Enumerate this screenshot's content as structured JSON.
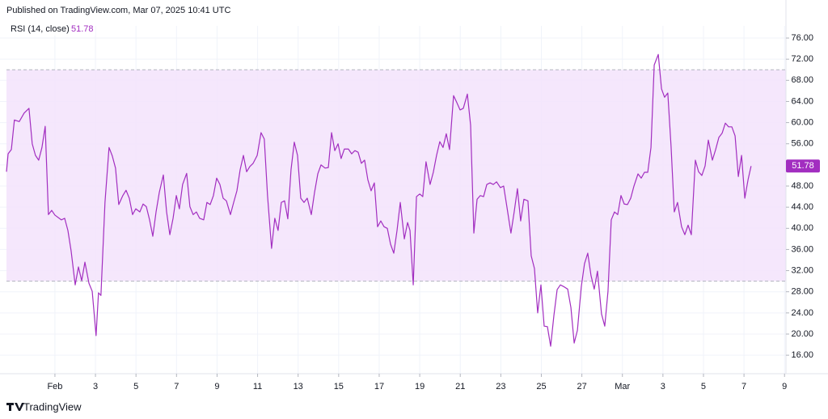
{
  "header": "Published on TradingView.com, Mar 07, 2025 10:41 UTC",
  "brand": "TradingView",
  "chart_data": {
    "type": "line",
    "x": [
      -2.39,
      -2.31,
      -2.15,
      -2.0,
      -1.76,
      -1.52,
      -1.28,
      -1.12,
      -0.96,
      -0.8,
      -0.64,
      -0.48,
      -0.32,
      -0.16,
      0,
      0.32,
      0.48,
      0.64,
      0.8,
      1.0,
      1.16,
      1.32,
      1.48,
      1.68,
      1.84,
      2.03,
      2.15,
      2.27,
      2.47,
      2.67,
      2.83,
      2.99,
      3.15,
      3.35,
      3.51,
      3.67,
      3.83,
      3.99,
      4.19,
      4.35,
      4.51,
      4.67,
      4.83,
      4.99,
      5.15,
      5.35,
      5.51,
      5.67,
      5.83,
      5.99,
      6.14,
      6.3,
      6.5,
      6.66,
      6.82,
      6.98,
      7.14,
      7.34,
      7.5,
      7.66,
      7.82,
      7.98,
      8.14,
      8.3,
      8.46,
      8.66,
      8.82,
      8.98,
      9.14,
      9.3,
      9.46,
      9.62,
      9.78,
      9.98,
      10.17,
      10.33,
      10.49,
      10.69,
      10.85,
      11.01,
      11.17,
      11.33,
      11.49,
      11.65,
      11.81,
      11.97,
      12.13,
      12.29,
      12.45,
      12.65,
      12.81,
      12.97,
      13.13,
      13.33,
      13.49,
      13.65,
      13.81,
      13.97,
      14.12,
      14.28,
      14.48,
      14.64,
      14.8,
      14.96,
      15.12,
      15.28,
      15.44,
      15.6,
      15.76,
      15.92,
      16.08,
      16.24,
      16.4,
      16.56,
      16.72,
      16.88,
      17.04,
      17.24,
      17.4,
      17.52,
      17.68,
      17.84,
      18.0,
      18.15,
      18.31,
      18.51,
      18.67,
      18.83,
      18.99,
      19.15,
      19.31,
      19.47,
      19.67,
      19.83,
      19.99,
      20.15,
      20.35,
      20.51,
      20.67,
      20.83,
      20.99,
      21.15,
      21.31,
      21.47,
      21.63,
      21.79,
      21.98,
      22.14,
      22.3,
      22.5,
      22.66,
      22.82,
      22.98,
      23.14,
      23.34,
      23.5,
      23.66,
      23.82,
      23.98,
      24.14,
      24.3,
      24.46,
      24.62,
      24.78,
      24.94,
      25.14,
      25.3,
      25.46,
      25.62,
      25.78,
      25.97,
      26.13,
      26.29,
      26.45,
      26.61,
      26.77,
      26.97,
      27.13,
      27.29,
      27.45,
      27.61,
      27.77,
      27.93,
      28.09,
      28.25,
      28.41,
      28.57,
      28.77,
      28.93,
      29.09,
      29.25,
      29.41,
      29.57,
      29.77,
      29.93,
      30.08,
      30.24,
      30.4,
      30.56,
      30.72,
      30.92,
      31.08,
      31.24,
      31.4,
      31.6,
      31.76,
      31.92,
      32.08,
      32.24,
      32.44,
      32.6,
      32.76,
      32.92,
      33.08,
      33.24,
      33.4,
      33.56,
      33.72,
      33.88,
      34.04,
      34.2,
      34.35
    ],
    "series": [
      {
        "name": "RSI (14, close)",
        "color": "#a22ec0",
        "values": [
          50.7,
          54.1,
          54.9,
          60.5,
          60.2,
          61.8,
          62.7,
          56.0,
          53.8,
          52.9,
          55.3,
          59.3,
          42.6,
          43.4,
          42.5,
          41.6,
          41.9,
          39.6,
          35.7,
          29.3,
          32.7,
          30.1,
          33.6,
          29.6,
          28.1,
          19.7,
          27.8,
          27.3,
          44.9,
          55.3,
          53.7,
          51.4,
          44.5,
          46.2,
          47.2,
          45.7,
          42.6,
          43.7,
          43.1,
          44.6,
          44.1,
          41.6,
          38.5,
          43.1,
          46.8,
          50.1,
          43.1,
          38.8,
          41.9,
          46.2,
          43.7,
          48.3,
          50.4,
          44.1,
          42.6,
          43.1,
          41.9,
          41.6,
          44.9,
          44.5,
          46.2,
          49.5,
          48.3,
          45.7,
          45.2,
          42.6,
          44.9,
          47.1,
          51.1,
          53.8,
          50.7,
          51.7,
          52.3,
          53.8,
          58.1,
          56.9,
          46.2,
          36.2,
          41.9,
          39.6,
          44.9,
          45.2,
          41.8,
          51.1,
          56.3,
          53.8,
          45.7,
          44.9,
          45.7,
          42.6,
          46.8,
          50.3,
          52.0,
          51.4,
          51.5,
          58.1,
          54.7,
          56.0,
          53.2,
          55.0,
          55.0,
          54.1,
          54.7,
          54.4,
          52.3,
          52.9,
          49.2,
          47.1,
          48.6,
          40.3,
          41.4,
          40.3,
          40.0,
          37.0,
          35.3,
          39.6,
          44.9,
          38.0,
          41.1,
          39.6,
          29.3,
          46.0,
          46.5,
          46.0,
          52.6,
          48.3,
          50.6,
          53.8,
          56.4,
          55.3,
          57.9,
          54.9,
          65.1,
          63.8,
          62.4,
          62.7,
          65.4,
          59.5,
          39.1,
          45.5,
          46.2,
          46.0,
          48.3,
          48.6,
          48.3,
          48.8,
          47.7,
          48.0,
          44.1,
          39.1,
          43.1,
          47.5,
          41.4,
          45.5,
          45.2,
          34.8,
          32.4,
          24.0,
          29.3,
          21.5,
          21.4,
          17.7,
          23.5,
          28.4,
          29.3,
          28.9,
          28.5,
          25.0,
          18.3,
          20.7,
          28.9,
          33.3,
          35.3,
          31.1,
          28.5,
          31.9,
          23.8,
          21.5,
          28.1,
          41.6,
          43.1,
          42.6,
          46.2,
          44.6,
          44.5,
          45.7,
          48.0,
          50.3,
          49.5,
          50.6,
          50.6,
          55.3,
          70.9,
          72.9,
          66.4,
          64.8,
          65.6,
          55.6,
          43.1,
          44.9,
          40.3,
          38.8,
          40.6,
          38.8,
          52.9,
          50.7,
          50.0,
          51.8,
          56.7,
          52.9,
          54.9,
          57.2,
          58.0,
          59.9,
          59.2,
          59.2,
          57.5,
          49.8,
          53.8,
          45.7,
          49.2,
          51.78
        ]
      }
    ],
    "xlim": [
      -2.71,
      36.07
    ],
    "ylim": [
      12.5,
      78.3
    ],
    "xticks": [
      {
        "value": 0,
        "label": "Feb"
      },
      {
        "value": 2,
        "label": "3"
      },
      {
        "value": 4,
        "label": "5"
      },
      {
        "value": 6,
        "label": "7"
      },
      {
        "value": 8,
        "label": "9"
      },
      {
        "value": 10,
        "label": "11"
      },
      {
        "value": 12,
        "label": "13"
      },
      {
        "value": 14,
        "label": "15"
      },
      {
        "value": 16,
        "label": "17"
      },
      {
        "value": 18,
        "label": "19"
      },
      {
        "value": 20,
        "label": "21"
      },
      {
        "value": 22,
        "label": "23"
      },
      {
        "value": 24,
        "label": "25"
      },
      {
        "value": 26,
        "label": "27"
      },
      {
        "value": 28,
        "label": "Mar"
      },
      {
        "value": 30,
        "label": "3"
      },
      {
        "value": 32,
        "label": "5"
      },
      {
        "value": 34,
        "label": "7"
      },
      {
        "value": 36,
        "label": "9"
      }
    ],
    "yticks": [
      {
        "value": 16,
        "label": "16.00"
      },
      {
        "value": 20,
        "label": "20.00"
      },
      {
        "value": 24,
        "label": "24.00"
      },
      {
        "value": 28,
        "label": "28.00"
      },
      {
        "value": 32,
        "label": "32.00"
      },
      {
        "value": 36,
        "label": "36.00"
      },
      {
        "value": 40,
        "label": "40.00"
      },
      {
        "value": 44,
        "label": "44.00"
      },
      {
        "value": 48,
        "label": "48.00"
      },
      {
        "value": 52,
        "label": "52.00"
      },
      {
        "value": 56,
        "label": "56.00"
      },
      {
        "value": 60,
        "label": "60.00"
      },
      {
        "value": 64,
        "label": "64.00"
      },
      {
        "value": 68,
        "label": "68.00"
      },
      {
        "value": 72,
        "label": "72.00"
      },
      {
        "value": 76,
        "label": "76.00"
      }
    ],
    "grid": true,
    "bands": {
      "lower": 30,
      "upper": 70,
      "color": "#f3e3fc"
    }
  }
}
